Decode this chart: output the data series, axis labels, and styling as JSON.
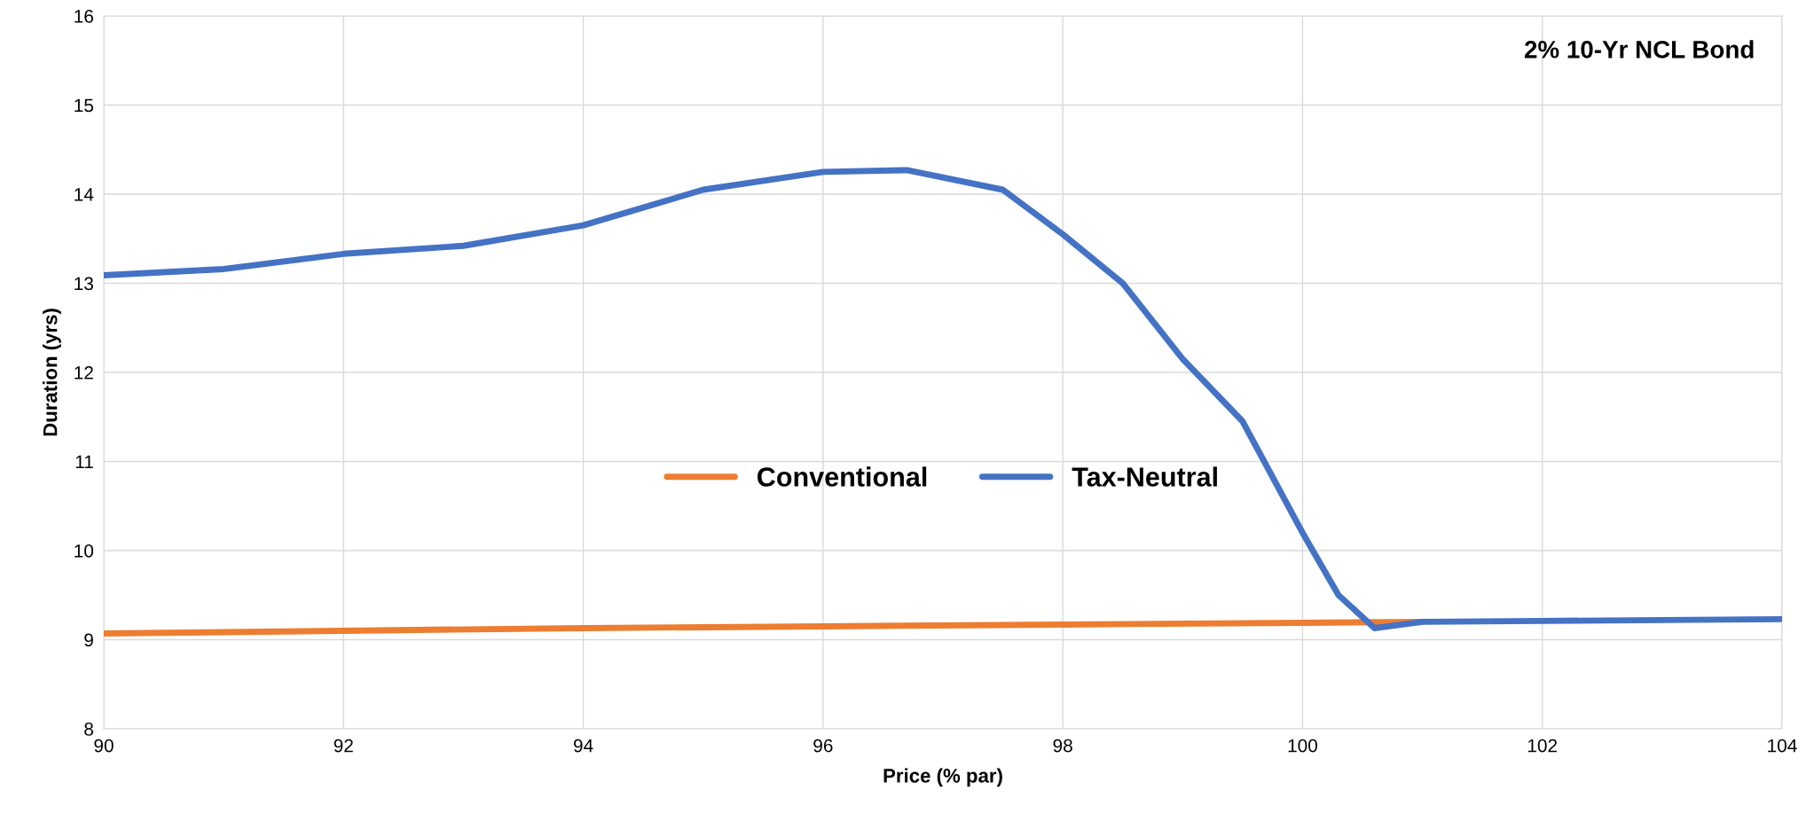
{
  "chart_data": {
    "type": "line",
    "xlabel": "Price (% par)",
    "ylabel": "Duration (yrs)",
    "xlim": [
      90,
      104
    ],
    "xticks": [
      90,
      92,
      94,
      96,
      98,
      100,
      102,
      104
    ],
    "ylim": [
      8,
      16
    ],
    "yticks": [
      8,
      9,
      10,
      11,
      12,
      13,
      14,
      15,
      16
    ],
    "grid": true,
    "legend": "center",
    "line_style": "solid",
    "marker": "none",
    "annotations": [
      "2% 10-Yr NCL Bond"
    ],
    "series": [
      {
        "name": "Conventional",
        "color": "#ed7d31",
        "x": [
          90,
          92,
          94,
          96,
          98,
          100,
          101
        ],
        "values": [
          9.07,
          9.1,
          9.13,
          9.15,
          9.17,
          9.19,
          9.2
        ]
      },
      {
        "name": "Tax-Neutral",
        "color": "#4472c4",
        "x": [
          90,
          91,
          92,
          93,
          94,
          95,
          96,
          96.7,
          97.5,
          98,
          98.5,
          99,
          99.5,
          100,
          100.3,
          100.6,
          101,
          102,
          103,
          104
        ],
        "values": [
          13.09,
          13.16,
          13.33,
          13.42,
          13.65,
          14.05,
          14.25,
          14.27,
          14.05,
          13.55,
          13.0,
          12.15,
          11.45,
          10.2,
          9.5,
          9.13,
          9.2,
          9.21,
          9.22,
          9.23
        ]
      }
    ]
  }
}
